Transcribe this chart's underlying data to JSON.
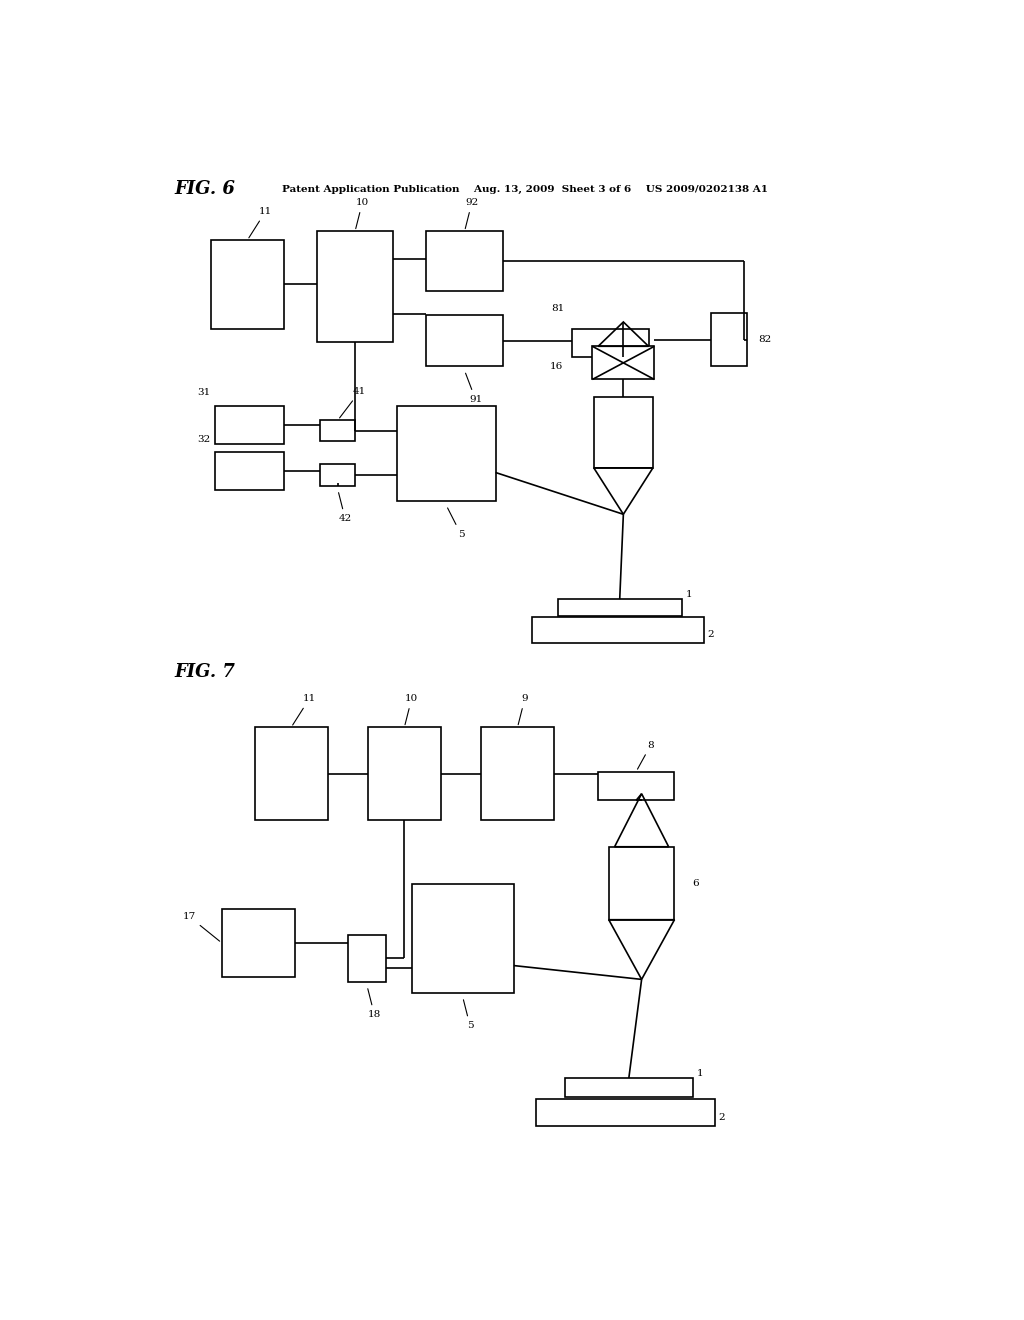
{
  "bg_color": "#ffffff",
  "line_color": "#000000",
  "header_text": "Patent Application Publication    Aug. 13, 2009  Sheet 3 of 6    US 2009/0202138 A1",
  "fig6_label": "FIG. 6",
  "fig7_label": "FIG. 7"
}
